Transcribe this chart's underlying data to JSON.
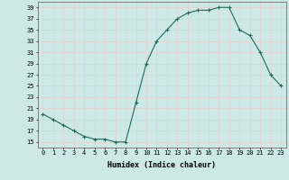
{
  "x": [
    0,
    1,
    2,
    3,
    4,
    5,
    6,
    7,
    8,
    9,
    10,
    11,
    12,
    13,
    14,
    15,
    16,
    17,
    18,
    19,
    20,
    21,
    22,
    23
  ],
  "y": [
    20,
    19,
    18,
    17,
    16,
    15.5,
    15.5,
    15,
    15,
    22,
    29,
    33,
    35,
    37,
    38,
    38.5,
    38.5,
    39,
    39,
    35,
    34,
    31,
    27,
    25
  ],
  "line_color": "#1a6b5a",
  "marker": "+",
  "marker_color": "#1a6b5a",
  "xlabel": "Humidex (Indice chaleur)",
  "xlim": [
    -0.5,
    23.5
  ],
  "ylim": [
    14,
    40
  ],
  "yticks": [
    15,
    17,
    19,
    21,
    23,
    25,
    27,
    29,
    31,
    33,
    35,
    37,
    39
  ],
  "xticks": [
    0,
    1,
    2,
    3,
    4,
    5,
    6,
    7,
    8,
    9,
    10,
    11,
    12,
    13,
    14,
    15,
    16,
    17,
    18,
    19,
    20,
    21,
    22,
    23
  ],
  "xtick_labels": [
    "0",
    "1",
    "2",
    "3",
    "4",
    "5",
    "6",
    "7",
    "8",
    "9",
    "10",
    "11",
    "12",
    "13",
    "14",
    "15",
    "16",
    "17",
    "18",
    "19",
    "20",
    "21",
    "22",
    "23"
  ],
  "bg_color": "#cce9e8",
  "grid_color": "#e8d0d0",
  "fig_bg_color": "#cce9e8"
}
